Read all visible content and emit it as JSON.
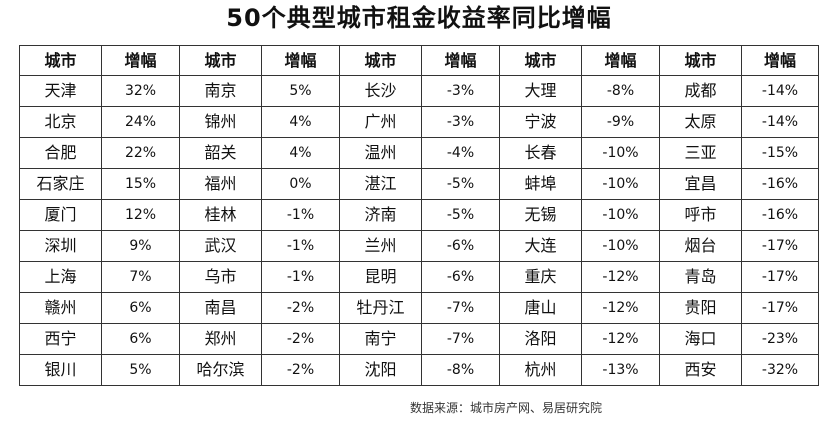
{
  "title": "50个典型城市租金收益率同比增幅",
  "table": {
    "headers": [
      "城市",
      "增幅",
      "城市",
      "增幅",
      "城市",
      "增幅",
      "城市",
      "增幅",
      "城市",
      "增幅"
    ],
    "rows": [
      [
        "天津",
        "32%",
        "南京",
        "5%",
        "长沙",
        "-3%",
        "大理",
        "-8%",
        "成都",
        "-14%"
      ],
      [
        "北京",
        "24%",
        "锦州",
        "4%",
        "广州",
        "-3%",
        "宁波",
        "-9%",
        "太原",
        "-14%"
      ],
      [
        "合肥",
        "22%",
        "韶关",
        "4%",
        "温州",
        "-4%",
        "长春",
        "-10%",
        "三亚",
        "-15%"
      ],
      [
        "石家庄",
        "15%",
        "福州",
        "0%",
        "湛江",
        "-5%",
        "蚌埠",
        "-10%",
        "宜昌",
        "-16%"
      ],
      [
        "厦门",
        "12%",
        "桂林",
        "-1%",
        "济南",
        "-5%",
        "无锡",
        "-10%",
        "呼市",
        "-16%"
      ],
      [
        "深圳",
        "9%",
        "武汉",
        "-1%",
        "兰州",
        "-6%",
        "大连",
        "-10%",
        "烟台",
        "-17%"
      ],
      [
        "上海",
        "7%",
        "乌市",
        "-1%",
        "昆明",
        "-6%",
        "重庆",
        "-12%",
        "青岛",
        "-17%"
      ],
      [
        "赣州",
        "6%",
        "南昌",
        "-2%",
        "牡丹江",
        "-7%",
        "唐山",
        "-12%",
        "贵阳",
        "-17%"
      ],
      [
        "西宁",
        "6%",
        "郑州",
        "-2%",
        "南宁",
        "-7%",
        "洛阳",
        "-12%",
        "海口",
        "-23%"
      ],
      [
        "银川",
        "5%",
        "哈尔滨",
        "-2%",
        "沈阳",
        "-8%",
        "杭州",
        "-13%",
        "西安",
        "-32%"
      ]
    ]
  },
  "source": "数据来源：城市房产网、易居研究院"
}
